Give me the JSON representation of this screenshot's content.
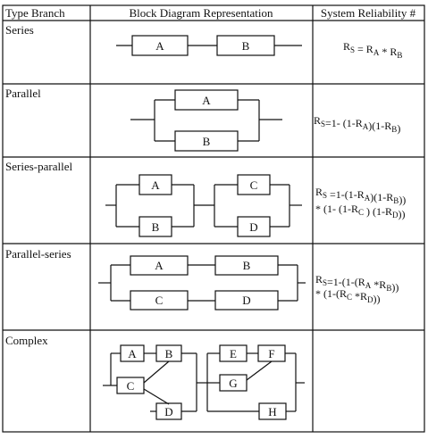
{
  "headers": {
    "type_branch": "Type Branch",
    "block_diagram": "Block Diagram Representation",
    "reliability": "System Reliability #"
  },
  "rows": {
    "series": {
      "name": "Series",
      "blocks": [
        "A",
        "B"
      ],
      "formula": "R_S = R_A * R_B"
    },
    "parallel": {
      "name": "Parallel",
      "blocks": [
        "A",
        "B"
      ],
      "formula": "R_S=1- (1-R_A)(1-R_B)"
    },
    "series_parallel": {
      "name": "Series-parallel",
      "blocks": [
        "A",
        "B",
        "C",
        "D"
      ],
      "formula_line1": "R_S =1-(1-R_A)(1-R_B))",
      "formula_line2": "* (1- (1-R_C ) (1-R_D))"
    },
    "parallel_series": {
      "name": "Parallel-series",
      "blocks": [
        "A",
        "B",
        "C",
        "D"
      ],
      "formula_line1": "R_S=1-(1-(R_A *R_B))",
      "formula_line2": "* (1-(R_C *R_D))"
    },
    "complex": {
      "name": "Complex",
      "blocks": [
        "A",
        "B",
        "C",
        "D",
        "E",
        "F",
        "G",
        "H"
      ],
      "formula": ""
    }
  }
}
